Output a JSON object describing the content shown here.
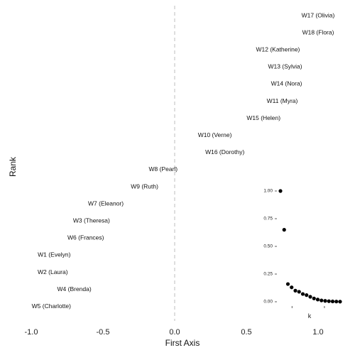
{
  "colors": {
    "background": "#ffffff",
    "text": "#111111",
    "zero_line": "#bdbdbd",
    "inset_points": "#000000"
  },
  "chart_data": [
    {
      "type": "scatter",
      "title": "",
      "xlabel": "First Axis",
      "ylabel": "Rank",
      "xlim": [
        -1.0,
        1.2
      ],
      "x_ticks": [
        "-1.0",
        "-0.5",
        "0.0",
        "0.5",
        "1.0"
      ],
      "grid": false,
      "vertical_reference_line_at_x": 0.0,
      "markers": "text labels only",
      "points": [
        {
          "label": "W17 (Olivia)",
          "x": 1.0,
          "rank": 18
        },
        {
          "label": "W18 (Flora)",
          "x": 1.0,
          "rank": 17
        },
        {
          "label": "W12 (Katherine)",
          "x": 0.72,
          "rank": 16
        },
        {
          "label": "W13 (Sylvia)",
          "x": 0.77,
          "rank": 15
        },
        {
          "label": "W14 (Nora)",
          "x": 0.78,
          "rank": 14
        },
        {
          "label": "W11 (Myra)",
          "x": 0.75,
          "rank": 13
        },
        {
          "label": "W15 (Helen)",
          "x": 0.62,
          "rank": 12
        },
        {
          "label": "W10 (Verne)",
          "x": 0.28,
          "rank": 11
        },
        {
          "label": "W16 (Dorothy)",
          "x": 0.35,
          "rank": 10
        },
        {
          "label": "W8 (Pearl)",
          "x": -0.08,
          "rank": 9
        },
        {
          "label": "W9 (Ruth)",
          "x": -0.21,
          "rank": 8
        },
        {
          "label": "W7 (Eleanor)",
          "x": -0.48,
          "rank": 7
        },
        {
          "label": "W3 (Theresa)",
          "x": -0.58,
          "rank": 6
        },
        {
          "label": "W6 (Frances)",
          "x": -0.62,
          "rank": 5
        },
        {
          "label": "W1 (Evelyn)",
          "x": -0.84,
          "rank": 4
        },
        {
          "label": "W2 (Laura)",
          "x": -0.85,
          "rank": 3
        },
        {
          "label": "W4 (Brenda)",
          "x": -0.7,
          "rank": 2
        },
        {
          "label": "W5 (Charlotte)",
          "x": -0.86,
          "rank": 1
        }
      ]
    },
    {
      "type": "scatter",
      "title": "",
      "xlabel": "k",
      "ylabel": "",
      "ylim": [
        0,
        1
      ],
      "y_ticks": [
        "0.00",
        "0.25",
        "0.50",
        "0.75",
        "1.00"
      ],
      "grid": false,
      "placement": "bottom-right inset",
      "x": [
        1,
        2,
        3,
        4,
        5,
        6,
        7,
        8,
        9,
        10,
        11,
        12,
        13,
        14,
        15,
        16,
        17
      ],
      "values": [
        1.0,
        0.65,
        0.16,
        0.13,
        0.1,
        0.09,
        0.07,
        0.06,
        0.045,
        0.03,
        0.02,
        0.012,
        0.008,
        0.005,
        0.003,
        0.002,
        0.001
      ]
    }
  ]
}
